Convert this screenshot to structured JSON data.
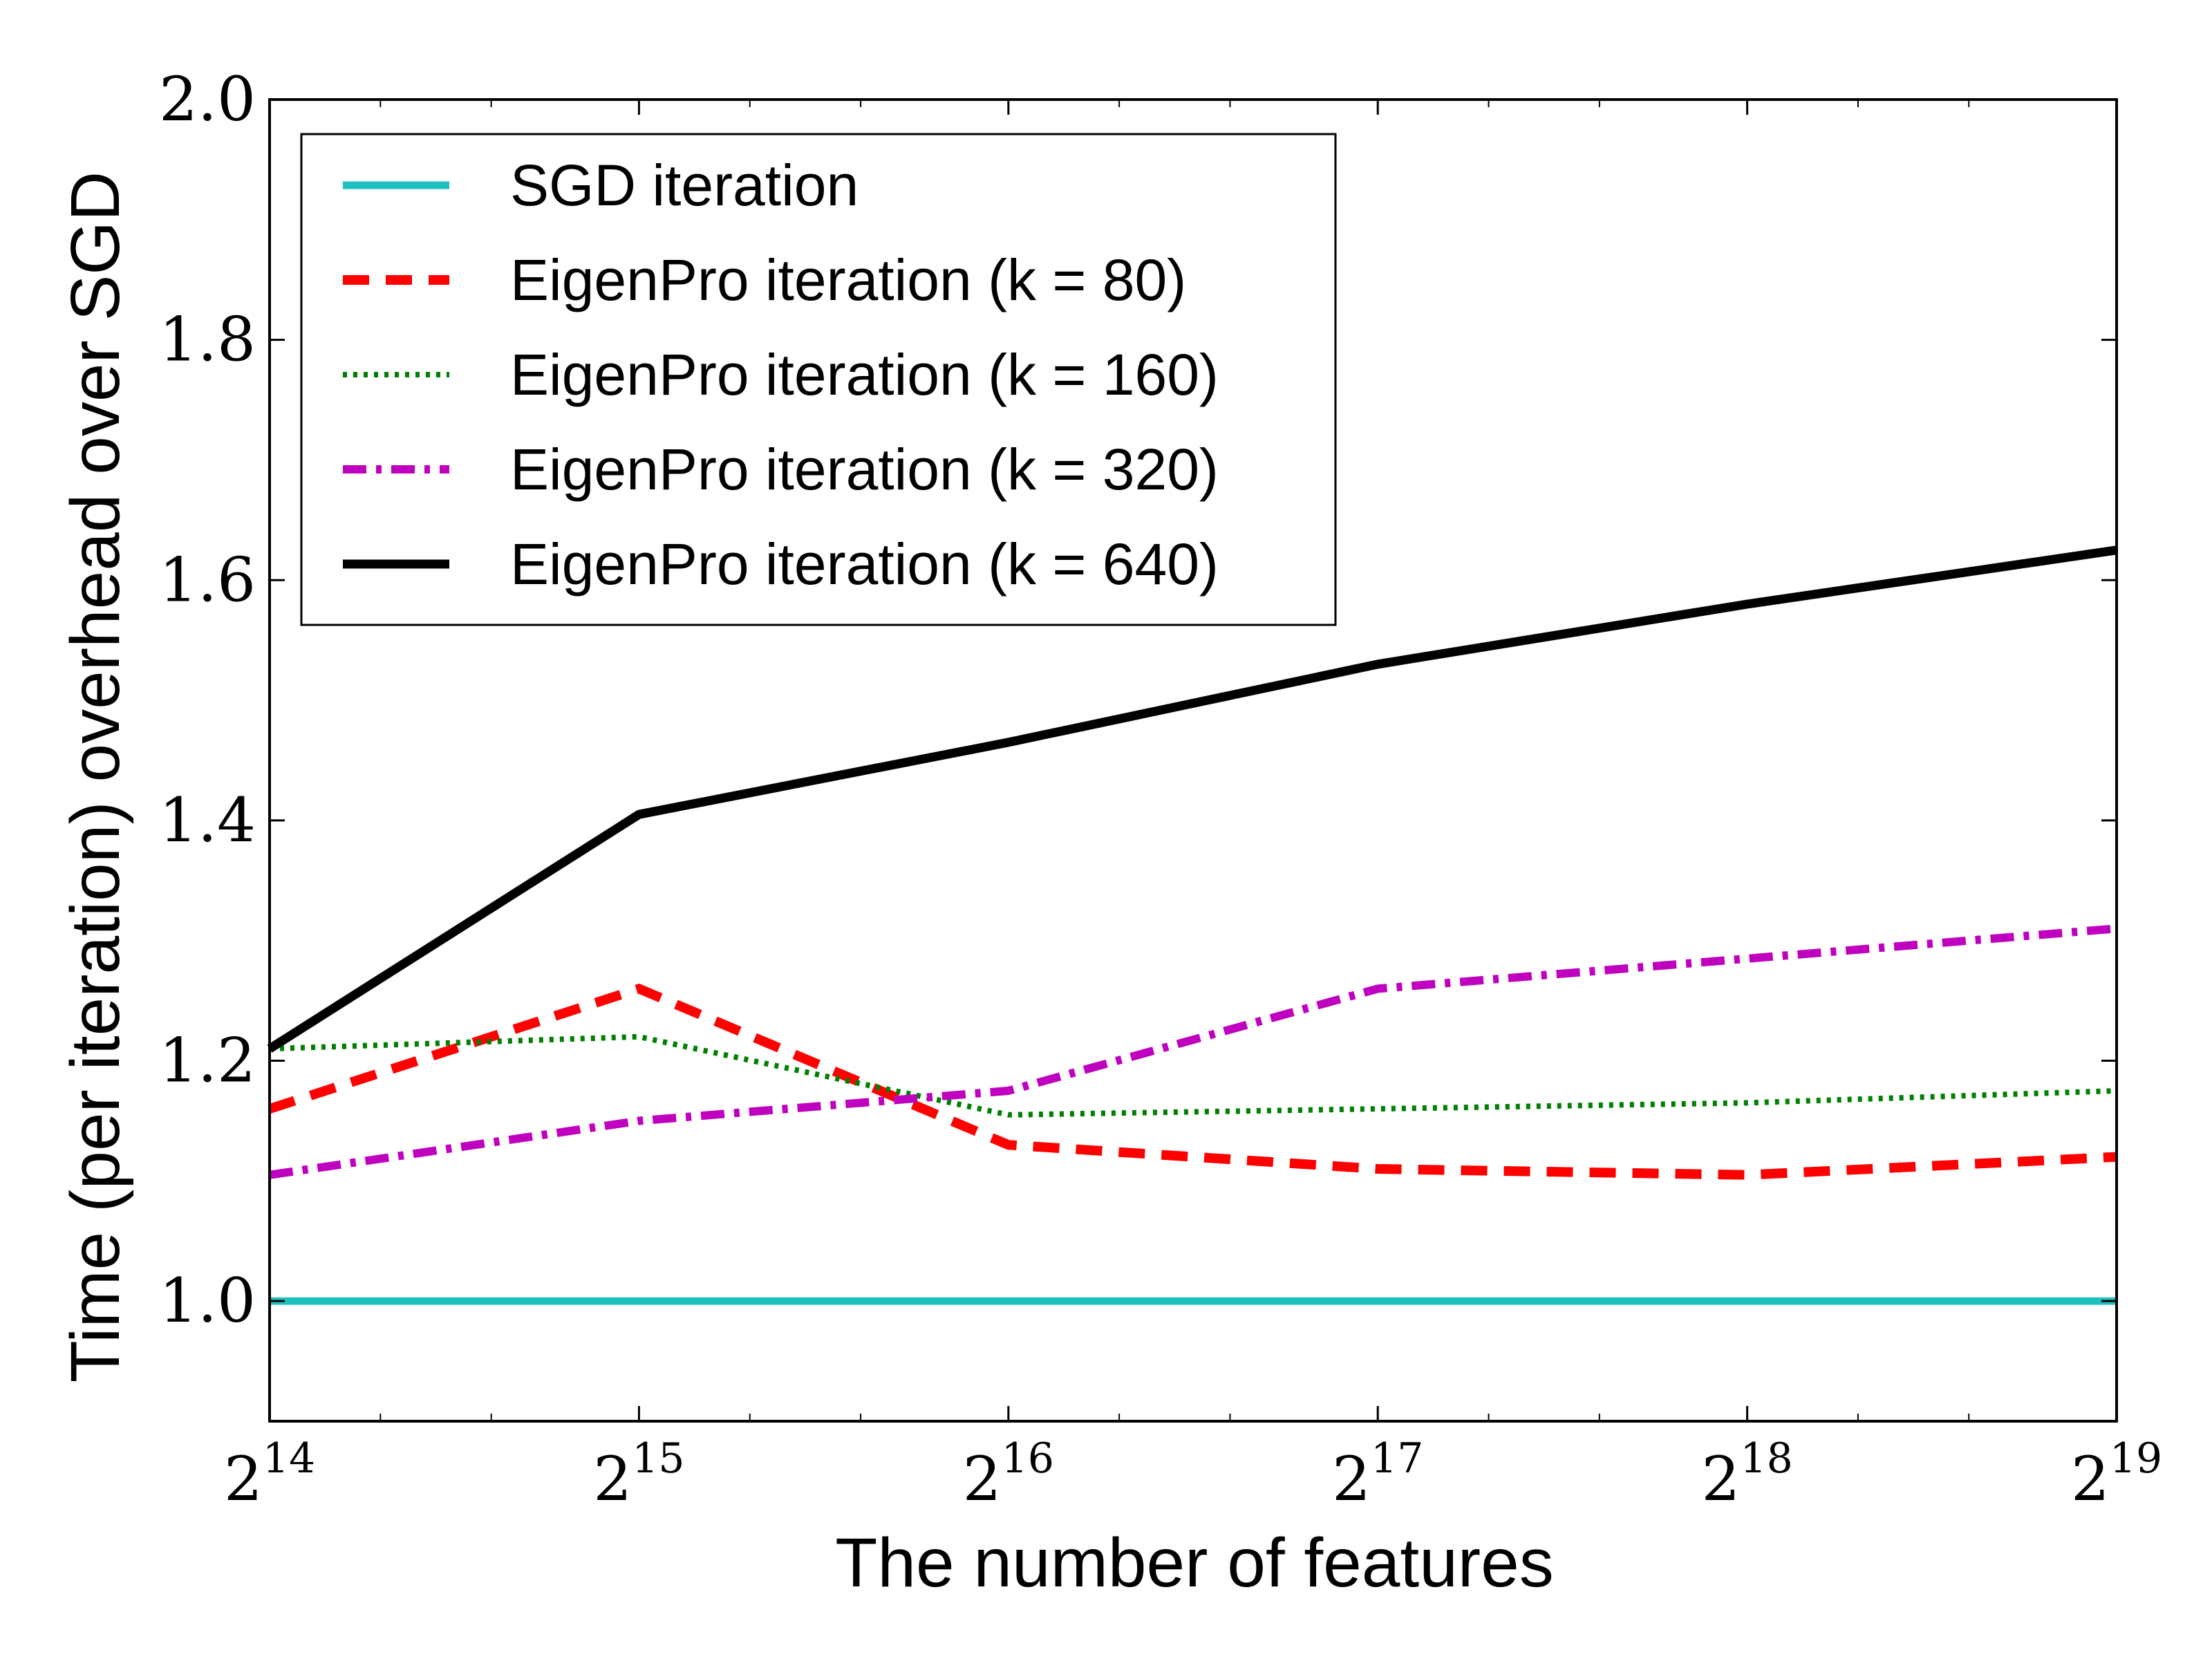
{
  "chart_data": {
    "type": "line",
    "title": "",
    "xlabel": "The number of features",
    "ylabel": "Time (per iteration) overhead over SGD",
    "x_scale": "log2",
    "x_exponents": [
      14,
      15,
      16,
      17,
      18,
      19
    ],
    "x_tick_base": "2",
    "x_tick_exponents": [
      "14",
      "15",
      "16",
      "17",
      "18",
      "19"
    ],
    "xlim_exponent": [
      14,
      19
    ],
    "ylim": [
      0.9,
      2.0
    ],
    "y_ticks": [
      1.0,
      1.2,
      1.4,
      1.6,
      1.8,
      2.0
    ],
    "y_tick_labels": [
      "1.0",
      "1.2",
      "1.4",
      "1.6",
      "1.8",
      "2.0"
    ],
    "grid": false,
    "legend_position": "top-left",
    "series": [
      {
        "name": "SGD iteration",
        "color": "#1dbfbf",
        "style": "solid",
        "values": [
          1.0,
          1.0,
          1.0,
          1.0,
          1.0,
          1.0
        ]
      },
      {
        "name": "EigenPro iteration (k = 80)",
        "color": "#ff0000",
        "style": "dashed",
        "values": [
          1.16,
          1.26,
          1.13,
          1.11,
          1.105,
          1.12
        ]
      },
      {
        "name": "EigenPro iteration (k = 160)",
        "color": "#008000",
        "style": "dotted",
        "values": [
          1.21,
          1.22,
          1.155,
          1.16,
          1.165,
          1.175
        ]
      },
      {
        "name": "EigenPro iteration (k = 320)",
        "color": "#bf00bf",
        "style": "dashdot",
        "values": [
          1.105,
          1.15,
          1.175,
          1.26,
          1.285,
          1.31
        ]
      },
      {
        "name": "EigenPro iteration (k = 640)",
        "color": "#000000",
        "style": "solid",
        "values": [
          1.21,
          1.405,
          1.465,
          1.53,
          1.58,
          1.625
        ]
      }
    ]
  }
}
